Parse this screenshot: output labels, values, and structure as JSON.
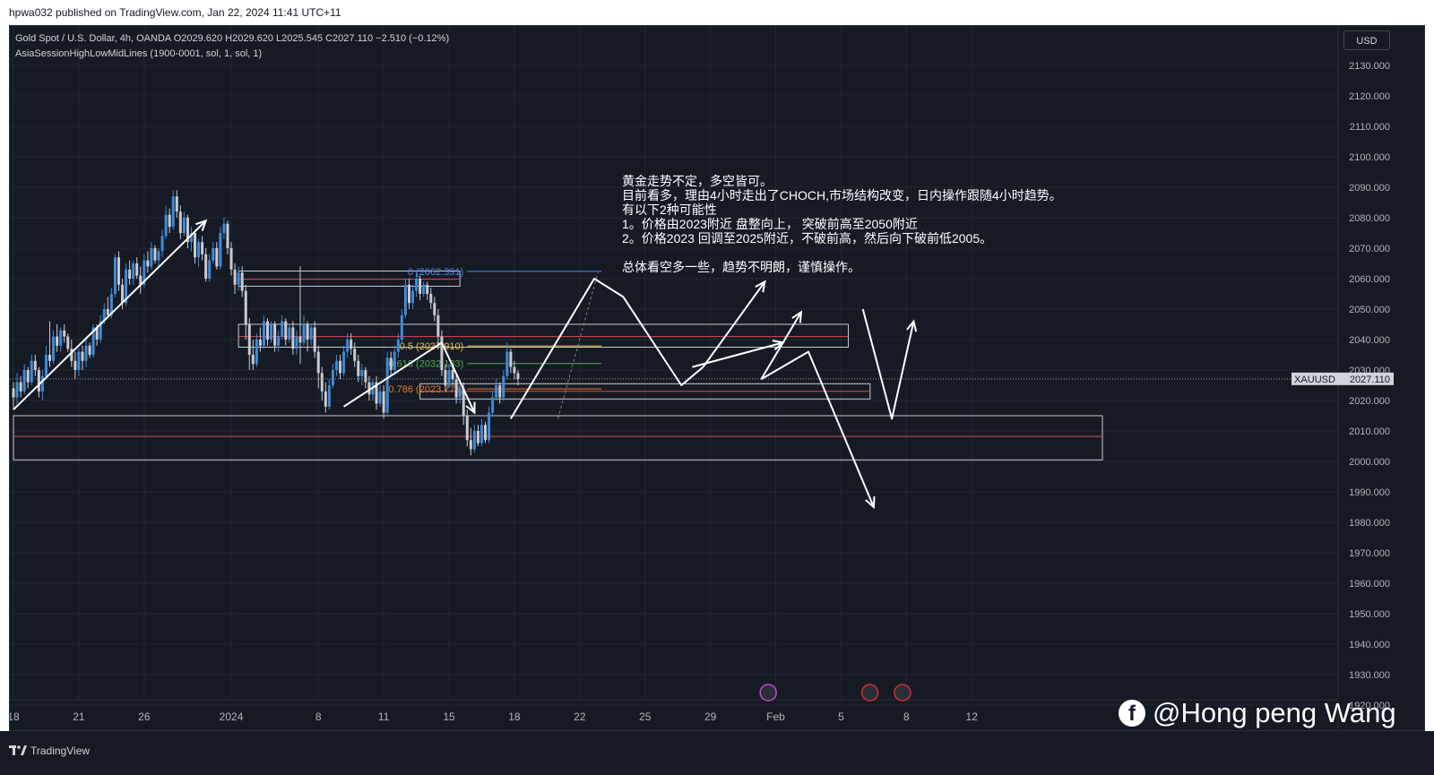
{
  "publish_line": "hpwa032 published on TradingView.com, Jan 22, 2024 11:41 UTC+11",
  "legend": {
    "line1": "Gold Spot / U.S. Dollar, 4h, OANDA  O2029.620  H2029.620  L2025.545  C2027.110  −2.510 (−0.12%)",
    "line2": "AsiaSessionHighLowMidLines (1900-0001, sol, 1, sol, 1)"
  },
  "currency": "USD",
  "symbol_tag": "XAUUSD",
  "price_tag": "2027.110",
  "annotation": [
    "黄金走势不定，多空皆可。",
    "目前看多，理由4小时走出了CHOCH,市场结构改变，日内操作跟随4小时趋势。",
    "有以下2种可能性",
    "1。价格由2023附近 盘整向上，  突破前高至2050附近",
    "2。价格2023 回调至2025附近，不破前高，然后向下破前低2005。",
    "",
    "总体看空多一些，趋势不明朗，谨慎操作。"
  ],
  "fib_labels": {
    "top": "0 (2062.391)",
    "mid": "0.5 (2037.910)",
    "l618": "0.618 (2032.133)",
    "l786": "0.786 (2023.773)"
  },
  "watermark": "@Hong peng Wang",
  "tv_brand": "TradingView",
  "colors": {
    "background": "#161a25",
    "grid": "#232734",
    "up": "#3d8bd9",
    "down": "#c9cbd1",
    "zone_red": "#e0494d",
    "arrow": "#ffffff",
    "fib_blue": "#4a8cf0",
    "fib_yellow": "#f0c040",
    "fib_green": "#4caf50",
    "fib_orange": "#e67e22"
  },
  "chart_data": {
    "type": "candlestick",
    "symbol": "XAUUSD",
    "timeframe": "4h",
    "ylim": [
      1920,
      2135
    ],
    "y_ticks": [
      2130,
      2120,
      2110,
      2100,
      2090,
      2080,
      2070,
      2060,
      2050,
      2040,
      2030,
      2020,
      2010,
      2000,
      1990,
      1980,
      1970,
      1960,
      1950,
      1940,
      1930,
      1920
    ],
    "y_tick_labels": [
      "2130.000",
      "2120.000",
      "2110.000",
      "2100.000",
      "2090.000",
      "2080.000",
      "2070.000",
      "2060.000",
      "2050.000",
      "2040.000",
      "2030.000",
      "2020.000",
      "2010.000",
      "2000.000",
      "1990.000",
      "1980.000",
      "1970.000",
      "1960.000",
      "1950.000",
      "1940.000",
      "1930.000",
      "1920.000"
    ],
    "x_ticks": [
      {
        "label": "18",
        "bar": 0
      },
      {
        "label": "21",
        "bar": 18
      },
      {
        "label": "26",
        "bar": 36
      },
      {
        "label": "2024",
        "bar": 60
      },
      {
        "label": "8",
        "bar": 84
      },
      {
        "label": "11",
        "bar": 102
      },
      {
        "label": "15",
        "bar": 120
      },
      {
        "label": "18",
        "bar": 138
      },
      {
        "label": "22",
        "bar": 156
      },
      {
        "label": "25",
        "bar": 174
      },
      {
        "label": "29",
        "bar": 192
      },
      {
        "label": "Feb",
        "bar": 210
      },
      {
        "label": "5",
        "bar": 228
      },
      {
        "label": "8",
        "bar": 246
      },
      {
        "label": "12",
        "bar": 264
      }
    ],
    "candles": [
      [
        2024,
        2021,
        2026,
        2017
      ],
      [
        2021,
        2026,
        2029,
        2019
      ],
      [
        2026,
        2023,
        2028,
        2021
      ],
      [
        2023,
        2030,
        2032,
        2022
      ],
      [
        2030,
        2026,
        2031,
        2024
      ],
      [
        2026,
        2033,
        2035,
        2025
      ],
      [
        2033,
        2030,
        2035,
        2028
      ],
      [
        2030,
        2023,
        2031,
        2021
      ],
      [
        2023,
        2028,
        2030,
        2020
      ],
      [
        2028,
        2035,
        2038,
        2027
      ],
      [
        2035,
        2033,
        2046,
        2031
      ],
      [
        2033,
        2041,
        2043,
        2032
      ],
      [
        2041,
        2038,
        2045,
        2036
      ],
      [
        2038,
        2043,
        2044,
        2036
      ],
      [
        2043,
        2041,
        2045,
        2039
      ],
      [
        2041,
        2037,
        2042,
        2036
      ],
      [
        2037,
        2033,
        2040,
        2031
      ],
      [
        2033,
        2030,
        2036,
        2027
      ],
      [
        2030,
        2036,
        2037,
        2028
      ],
      [
        2036,
        2033,
        2038,
        2030
      ],
      [
        2033,
        2038,
        2040,
        2031
      ],
      [
        2038,
        2035,
        2039,
        2034
      ],
      [
        2035,
        2044,
        2045,
        2034
      ],
      [
        2044,
        2040,
        2045,
        2038
      ],
      [
        2040,
        2046,
        2048,
        2039
      ],
      [
        2046,
        2050,
        2052,
        2045
      ],
      [
        2050,
        2048,
        2054,
        2047
      ],
      [
        2048,
        2055,
        2057,
        2047
      ],
      [
        2055,
        2067,
        2068,
        2054
      ],
      [
        2067,
        2058,
        2069,
        2056
      ],
      [
        2058,
        2052,
        2060,
        2050
      ],
      [
        2052,
        2063,
        2065,
        2051
      ],
      [
        2063,
        2060,
        2066,
        2058
      ],
      [
        2060,
        2065,
        2066,
        2058
      ],
      [
        2065,
        2061,
        2067,
        2060
      ],
      [
        2061,
        2058,
        2064,
        2055
      ],
      [
        2058,
        2066,
        2068,
        2057
      ],
      [
        2066,
        2064,
        2069,
        2062
      ],
      [
        2064,
        2070,
        2072,
        2063
      ],
      [
        2070,
        2066,
        2071,
        2065
      ],
      [
        2066,
        2069,
        2070,
        2064
      ],
      [
        2069,
        2074,
        2076,
        2067
      ],
      [
        2074,
        2081,
        2084,
        2073
      ],
      [
        2081,
        2077,
        2083,
        2075
      ],
      [
        2077,
        2087,
        2089,
        2076
      ],
      [
        2087,
        2082,
        2089,
        2080
      ],
      [
        2082,
        2075,
        2084,
        2073
      ],
      [
        2075,
        2080,
        2082,
        2074
      ],
      [
        2080,
        2072,
        2081,
        2070
      ],
      [
        2072,
        2075,
        2077,
        2069
      ],
      [
        2075,
        2067,
        2076,
        2065
      ],
      [
        2067,
        2072,
        2073,
        2064
      ],
      [
        2072,
        2068,
        2074,
        2066
      ],
      [
        2068,
        2060,
        2070,
        2059
      ],
      [
        2060,
        2066,
        2068,
        2059
      ],
      [
        2066,
        2070,
        2072,
        2065
      ],
      [
        2070,
        2064,
        2072,
        2063
      ],
      [
        2064,
        2075,
        2077,
        2063
      ],
      [
        2075,
        2078,
        2080,
        2073
      ],
      [
        2078,
        2070,
        2079,
        2068
      ],
      [
        2070,
        2063,
        2072,
        2061
      ],
      [
        2063,
        2058,
        2065,
        2055
      ],
      [
        2058,
        2062,
        2064,
        2056
      ],
      [
        2062,
        2056,
        2064,
        2054
      ],
      [
        2056,
        2045,
        2058,
        2040
      ],
      [
        2045,
        2035,
        2047,
        2030
      ],
      [
        2035,
        2032,
        2040,
        2030
      ],
      [
        2032,
        2040,
        2042,
        2031
      ],
      [
        2040,
        2038,
        2044,
        2036
      ],
      [
        2038,
        2046,
        2048,
        2037
      ],
      [
        2046,
        2040,
        2047,
        2038
      ],
      [
        2040,
        2045,
        2046,
        2039
      ],
      [
        2045,
        2038,
        2046,
        2036
      ],
      [
        2038,
        2041,
        2043,
        2036
      ],
      [
        2041,
        2046,
        2048,
        2040
      ],
      [
        2046,
        2040,
        2047,
        2038
      ],
      [
        2040,
        2044,
        2045,
        2039
      ],
      [
        2044,
        2037,
        2046,
        2035
      ],
      [
        2037,
        2041,
        2043,
        2035
      ],
      [
        2041,
        2039,
        2064,
        2032
      ],
      [
        2039,
        2045,
        2048,
        2038
      ],
      [
        2045,
        2040,
        2046,
        2036
      ],
      [
        2040,
        2044,
        2045,
        2038
      ],
      [
        2044,
        2036,
        2046,
        2034
      ],
      [
        2036,
        2029,
        2038,
        2024
      ],
      [
        2029,
        2023,
        2031,
        2020
      ],
      [
        2023,
        2018,
        2026,
        2016
      ],
      [
        2018,
        2025,
        2027,
        2017
      ],
      [
        2025,
        2030,
        2032,
        2024
      ],
      [
        2030,
        2033,
        2035,
        2028
      ],
      [
        2033,
        2029,
        2035,
        2027
      ],
      [
        2029,
        2036,
        2038,
        2028
      ],
      [
        2036,
        2040,
        2042,
        2034
      ],
      [
        2040,
        2037,
        2042,
        2035
      ],
      [
        2037,
        2033,
        2039,
        2031
      ],
      [
        2033,
        2028,
        2035,
        2026
      ],
      [
        2028,
        2030,
        2032,
        2025
      ],
      [
        2030,
        2026,
        2031,
        2024
      ],
      [
        2026,
        2022,
        2028,
        2020
      ],
      [
        2022,
        2026,
        2027,
        2020
      ],
      [
        2026,
        2019,
        2028,
        2017
      ],
      [
        2019,
        2023,
        2025,
        2018
      ],
      [
        2023,
        2016,
        2025,
        2014
      ],
      [
        2016,
        2034,
        2036,
        2015
      ],
      [
        2034,
        2030,
        2036,
        2028
      ],
      [
        2030,
        2036,
        2038,
        2029
      ],
      [
        2036,
        2040,
        2042,
        2034
      ],
      [
        2040,
        2048,
        2050,
        2039
      ],
      [
        2048,
        2058,
        2060,
        2047
      ],
      [
        2058,
        2052,
        2060,
        2050
      ],
      [
        2052,
        2056,
        2058,
        2050
      ],
      [
        2056,
        2060,
        2062,
        2054
      ],
      [
        2060,
        2055,
        2061,
        2053
      ],
      [
        2055,
        2058,
        2059,
        2054
      ],
      [
        2058,
        2055,
        2059,
        2053
      ],
      [
        2055,
        2052,
        2057,
        2050
      ],
      [
        2052,
        2048,
        2054,
        2046
      ],
      [
        2048,
        2041,
        2050,
        2038
      ],
      [
        2041,
        2030,
        2043,
        2028
      ],
      [
        2030,
        2025,
        2032,
        2023
      ],
      [
        2025,
        2030,
        2032,
        2024
      ],
      [
        2030,
        2027,
        2031,
        2025
      ],
      [
        2027,
        2021,
        2029,
        2019
      ],
      [
        2021,
        2024,
        2025,
        2019
      ],
      [
        2024,
        2015,
        2026,
        2012
      ],
      [
        2015,
        2007,
        2017,
        2005
      ],
      [
        2007,
        2004,
        2011,
        2002
      ],
      [
        2004,
        2010,
        2012,
        2003
      ],
      [
        2010,
        2006,
        2012,
        2005
      ],
      [
        2006,
        2012,
        2014,
        2005
      ],
      [
        2012,
        2007,
        2013,
        2006
      ],
      [
        2007,
        2016,
        2018,
        2006
      ],
      [
        2016,
        2021,
        2023,
        2015
      ],
      [
        2021,
        2025,
        2027,
        2020
      ],
      [
        2025,
        2021,
        2026,
        2019
      ],
      [
        2021,
        2028,
        2030,
        2020
      ],
      [
        2028,
        2036,
        2039,
        2027
      ],
      [
        2036,
        2031,
        2037,
        2029
      ],
      [
        2031,
        2029,
        2033,
        2027
      ],
      [
        2029,
        2027,
        2030,
        2025
      ]
    ],
    "zones": [
      {
        "top": 2062.5,
        "bottom": 2057.5,
        "x1_bar": 62,
        "x2_bar": 123,
        "mid": 2059.8
      },
      {
        "top": 2045.0,
        "bottom": 2037.5,
        "x1_bar": 62,
        "x2_bar": 230,
        "mid": 2041.0
      },
      {
        "top": 2025.5,
        "bottom": 2020.5,
        "x1_bar": 112,
        "x2_bar": 236,
        "mid": 2023.0
      },
      {
        "top": 2015.0,
        "bottom": 2000.5,
        "x1_bar": 0,
        "x2_bar": 300,
        "mid": 2008.2
      }
    ],
    "fib_levels": [
      {
        "key": "top",
        "value": 2062.391,
        "color": "#4a8cf0"
      },
      {
        "key": "mid",
        "value": 2037.91,
        "color": "#f0c040"
      },
      {
        "key": "l618",
        "value": 2032.133,
        "color": "#4caf50"
      },
      {
        "key": "l786",
        "value": 2023.773,
        "color": "#e67e22"
      }
    ],
    "last_price": 2027.11
  }
}
